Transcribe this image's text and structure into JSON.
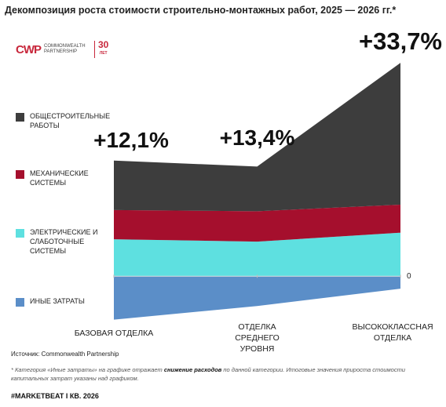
{
  "chart_data": {
    "type": "stacked_area",
    "title": "Декомпозиция роста стоимости строительно-монтажных работ, 2025 — 2026 гг.*",
    "categories": [
      "БАЗОВАЯ ОТДЕЛКА",
      "ОТДЕЛКА СРЕДНЕГО УРОВНЯ",
      "ВЫСОКОКЛАССНАЯ ОТДЕЛКА"
    ],
    "series": [
      {
        "name": "ОБЩЕСТРОИТЕЛЬНЫЕ РАБОТЫ",
        "color": "#3d3d3d",
        "values": [
          8.3,
          7.5,
          23.8
        ]
      },
      {
        "name": "МЕХАНИЧЕСКИЕ СИСТЕМЫ",
        "color": "#a50f2d",
        "values": [
          4.9,
          5.1,
          4.7
        ]
      },
      {
        "name": "ЭЛЕКТРИЧЕСКИЕ И СЛАБОТОЧНЫЕ СИСТЕМЫ",
        "color": "#5ee0e0",
        "values": [
          6.2,
          5.8,
          7.3
        ]
      },
      {
        "name": "ИНЫЕ ЗАТРАТЫ",
        "color": "#5b8ec8",
        "values": [
          -7.3,
          -5.0,
          -2.1
        ]
      }
    ],
    "totals": {
      "values": [
        12.1,
        13.4,
        33.7
      ],
      "value_labels": [
        "+12,1%",
        "+13,4%",
        "+33,7%"
      ]
    },
    "ylim": [
      -8,
      37
    ],
    "yticks": [
      0
    ],
    "legend": "left"
  },
  "logo": {
    "mark": "CWP",
    "name": "COMMONWEALTH PARTNERSHIP",
    "years": "30",
    "years_unit": "ЛЕТ"
  },
  "source": "Источник: Commonwealth Partnership",
  "footnote": [
    "* Категория «Иные затраты» на графике отражает ",
    "снижение расходов",
    " по данной категории. Итоговые значения прироста стоимости капитальных затрат указаны над графиком."
  ],
  "footer": "#MARKETBEAT I КВ. 2026"
}
